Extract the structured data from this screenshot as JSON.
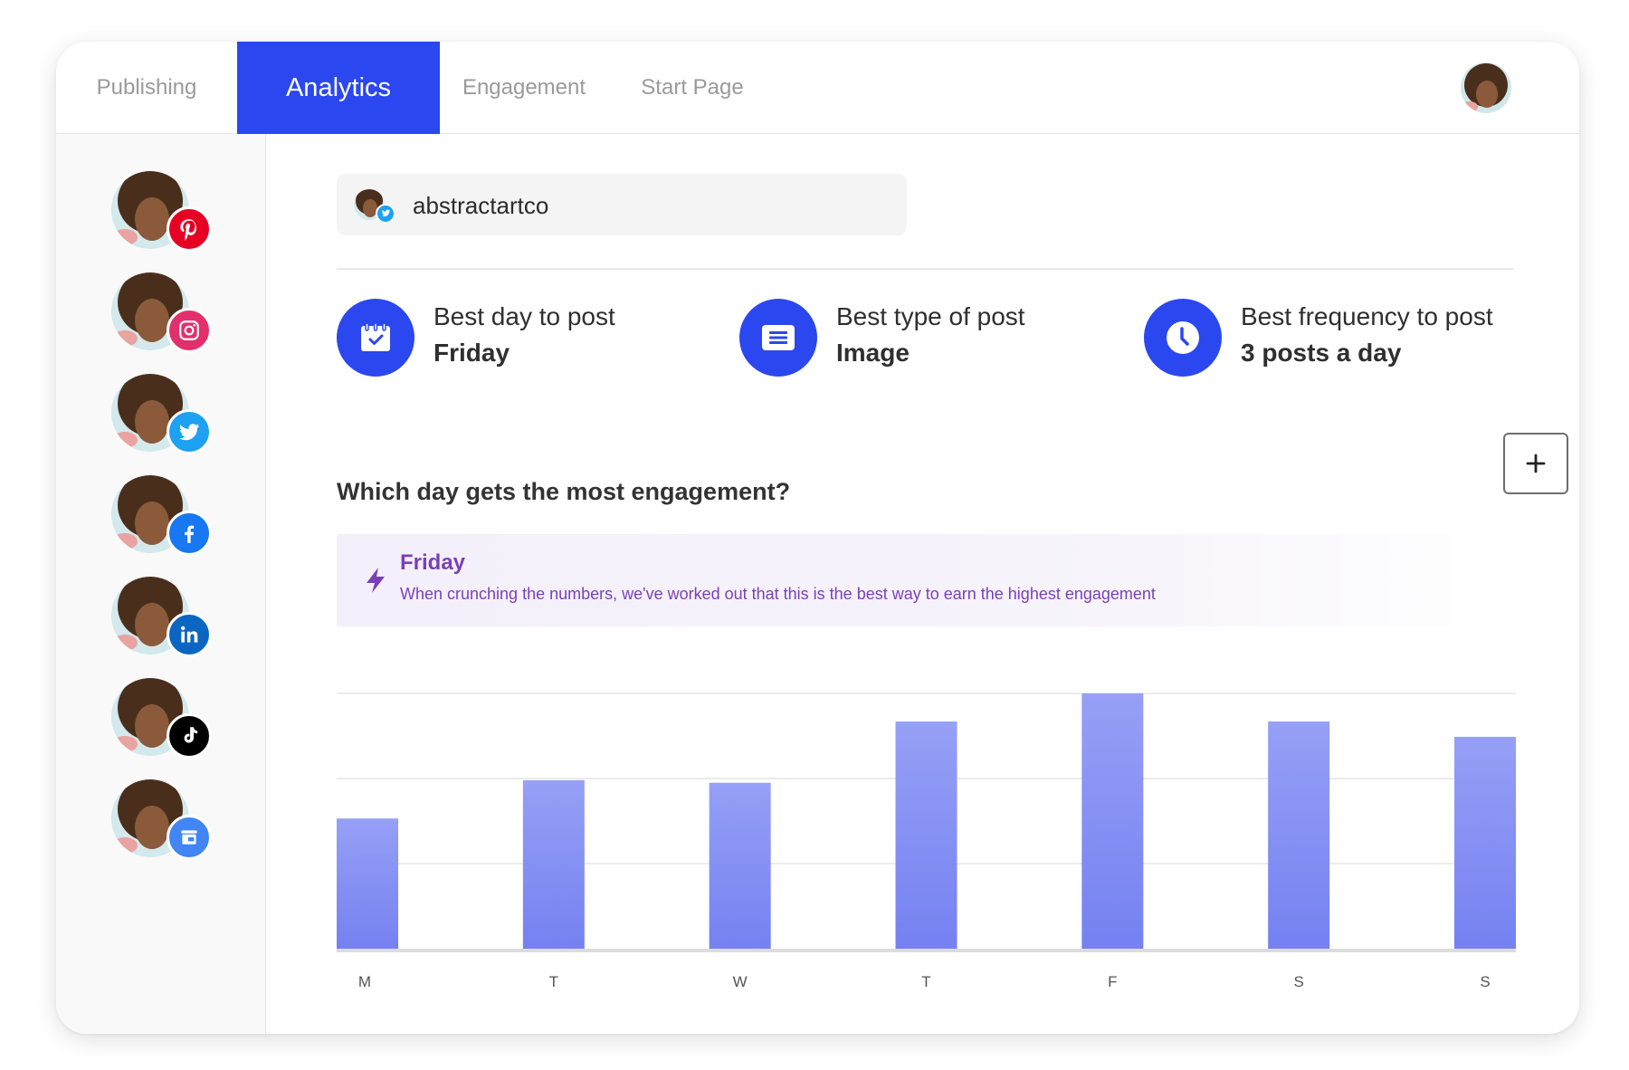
{
  "nav": {
    "tabs": [
      {
        "label": "Publishing",
        "active": false
      },
      {
        "label": "Analytics",
        "active": true
      },
      {
        "label": "Engagement",
        "active": false
      },
      {
        "label": "Start Page",
        "active": false
      }
    ]
  },
  "sidebar": {
    "accounts": [
      {
        "network": "pinterest",
        "icon": "pinterest-icon",
        "color": "#e60023"
      },
      {
        "network": "instagram",
        "icon": "instagram-icon",
        "color": "#e1306c"
      },
      {
        "network": "twitter",
        "icon": "twitter-icon",
        "color": "#1da1f2"
      },
      {
        "network": "facebook",
        "icon": "facebook-icon",
        "color": "#1877f2"
      },
      {
        "network": "linkedin",
        "icon": "linkedin-icon",
        "color": "#0a66c2"
      },
      {
        "network": "tiktok",
        "icon": "tiktok-icon",
        "color": "#000000"
      },
      {
        "network": "google-business",
        "icon": "storefront-icon",
        "color": "#4285f4"
      }
    ]
  },
  "account_selector": {
    "name": "abstractartco",
    "network_icon": "twitter-icon"
  },
  "stats": [
    {
      "label": "Best day to post",
      "value": "Friday",
      "icon": "calendar-check-icon"
    },
    {
      "label": "Best type of post",
      "value": "Image",
      "icon": "document-icon"
    },
    {
      "label": "Best frequency to post",
      "value": "3 posts a day",
      "icon": "clock-icon"
    }
  ],
  "colors": {
    "accent": "#2b47f0",
    "bar": "#8b96f4",
    "insight_text": "#7b3fb8"
  },
  "question": "Which day gets the most engagement?",
  "insight": {
    "icon": "lightning-icon",
    "title": "Friday",
    "description": "When crunching the numbers, we've worked out that this is the best way to earn the highest engagement"
  },
  "chart_data": {
    "type": "bar",
    "categories": [
      "M",
      "T",
      "W",
      "T",
      "F",
      "S",
      "S"
    ],
    "values": [
      51,
      66,
      65,
      89,
      100,
      89,
      83
    ],
    "ylim": [
      0,
      100
    ],
    "grid": true
  }
}
